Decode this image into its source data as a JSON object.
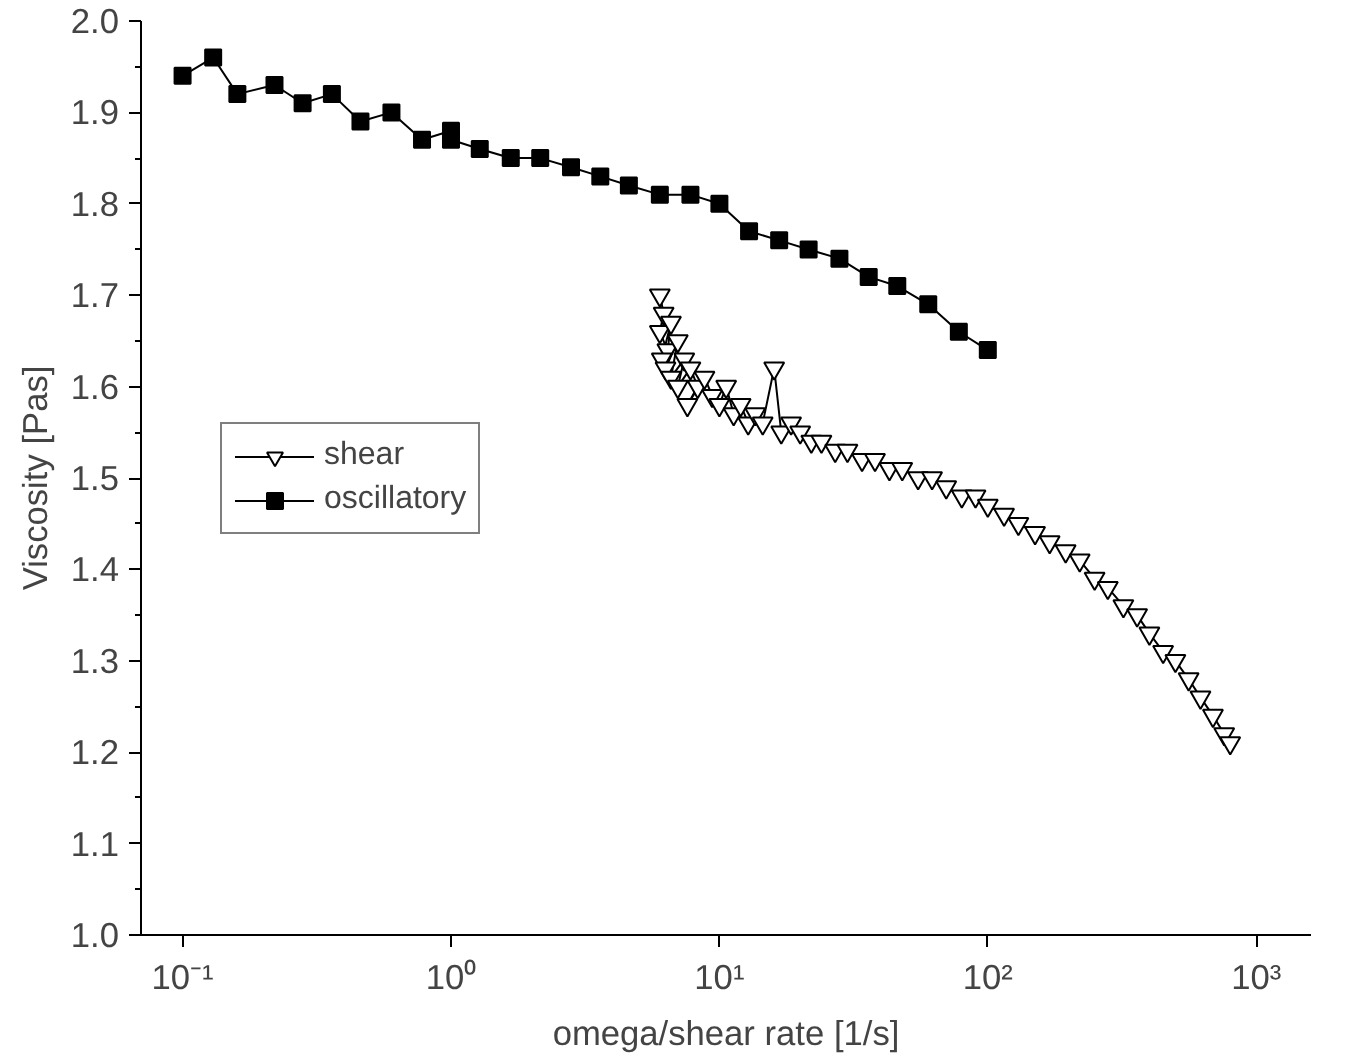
{
  "chart_data": {
    "type": "line",
    "xlabel": "omega/shear rate [1/s]",
    "ylabel": "Viscosity [Pas]",
    "log": "x",
    "xlim": [
      0.07,
      1600
    ],
    "ylim": [
      1.0,
      2.0
    ],
    "xticks": [
      {
        "value": 0.1,
        "label": "10⁻¹"
      },
      {
        "value": 1,
        "label": "10⁰"
      },
      {
        "value": 10,
        "label": "10¹"
      },
      {
        "value": 100,
        "label": "10²"
      },
      {
        "value": 1000,
        "label": "10³"
      }
    ],
    "yticks": [
      {
        "value": 1.0,
        "label": "1.0"
      },
      {
        "value": 1.1,
        "label": "1.1"
      },
      {
        "value": 1.2,
        "label": "1.2"
      },
      {
        "value": 1.3,
        "label": "1.3"
      },
      {
        "value": 1.4,
        "label": "1.4"
      },
      {
        "value": 1.5,
        "label": "1.5"
      },
      {
        "value": 1.6,
        "label": "1.6"
      },
      {
        "value": 1.7,
        "label": "1.7"
      },
      {
        "value": 1.8,
        "label": "1.8"
      },
      {
        "value": 1.9,
        "label": "1.9"
      },
      {
        "value": 2.0,
        "label": "2.0"
      }
    ],
    "grid": false,
    "legend": "left",
    "line_style": "solid",
    "series": [
      {
        "name": "shear",
        "color": "#000000",
        "marker": "triangle",
        "x": [
          6.0,
          6.2,
          6.0,
          6.4,
          6.1,
          6.6,
          6.3,
          7.0,
          6.6,
          7.4,
          7.0,
          7.8,
          8.3,
          7.6,
          8.8,
          9.4,
          10.0,
          10.6,
          11.3,
          12.0,
          12.8,
          13.6,
          14.5,
          16.0,
          17,
          18.5,
          20,
          22,
          24,
          27,
          30,
          34,
          38,
          43,
          48,
          55,
          62,
          70,
          80,
          90,
          100,
          115,
          130,
          150,
          170,
          195,
          220,
          250,
          280,
          320,
          360,
          400,
          450,
          500,
          560,
          620,
          690,
          760,
          800
        ],
        "values": [
          1.7,
          1.68,
          1.66,
          1.64,
          1.63,
          1.67,
          1.62,
          1.65,
          1.61,
          1.63,
          1.6,
          1.62,
          1.6,
          1.58,
          1.61,
          1.59,
          1.58,
          1.6,
          1.57,
          1.58,
          1.56,
          1.57,
          1.56,
          1.62,
          1.55,
          1.56,
          1.55,
          1.54,
          1.54,
          1.53,
          1.53,
          1.52,
          1.52,
          1.51,
          1.51,
          1.5,
          1.5,
          1.49,
          1.48,
          1.48,
          1.47,
          1.46,
          1.45,
          1.44,
          1.43,
          1.42,
          1.41,
          1.39,
          1.38,
          1.36,
          1.35,
          1.33,
          1.31,
          1.3,
          1.28,
          1.26,
          1.24,
          1.22,
          1.21
        ]
      },
      {
        "name": "oscillatory",
        "color": "#000000",
        "marker": "square",
        "x": [
          0.1,
          0.13,
          0.16,
          0.22,
          0.28,
          0.36,
          0.46,
          0.6,
          0.78,
          1.0,
          1.0,
          1.28,
          1.67,
          2.15,
          2.8,
          3.6,
          4.6,
          6.0,
          7.8,
          10,
          12.9,
          16.7,
          21.5,
          28,
          36,
          46,
          60,
          78,
          100
        ],
        "values": [
          1.94,
          1.96,
          1.92,
          1.93,
          1.91,
          1.92,
          1.89,
          1.9,
          1.87,
          1.88,
          1.87,
          1.86,
          1.85,
          1.85,
          1.84,
          1.83,
          1.82,
          1.81,
          1.81,
          1.8,
          1.77,
          1.76,
          1.75,
          1.74,
          1.72,
          1.71,
          1.69,
          1.66,
          1.64
        ]
      }
    ]
  }
}
